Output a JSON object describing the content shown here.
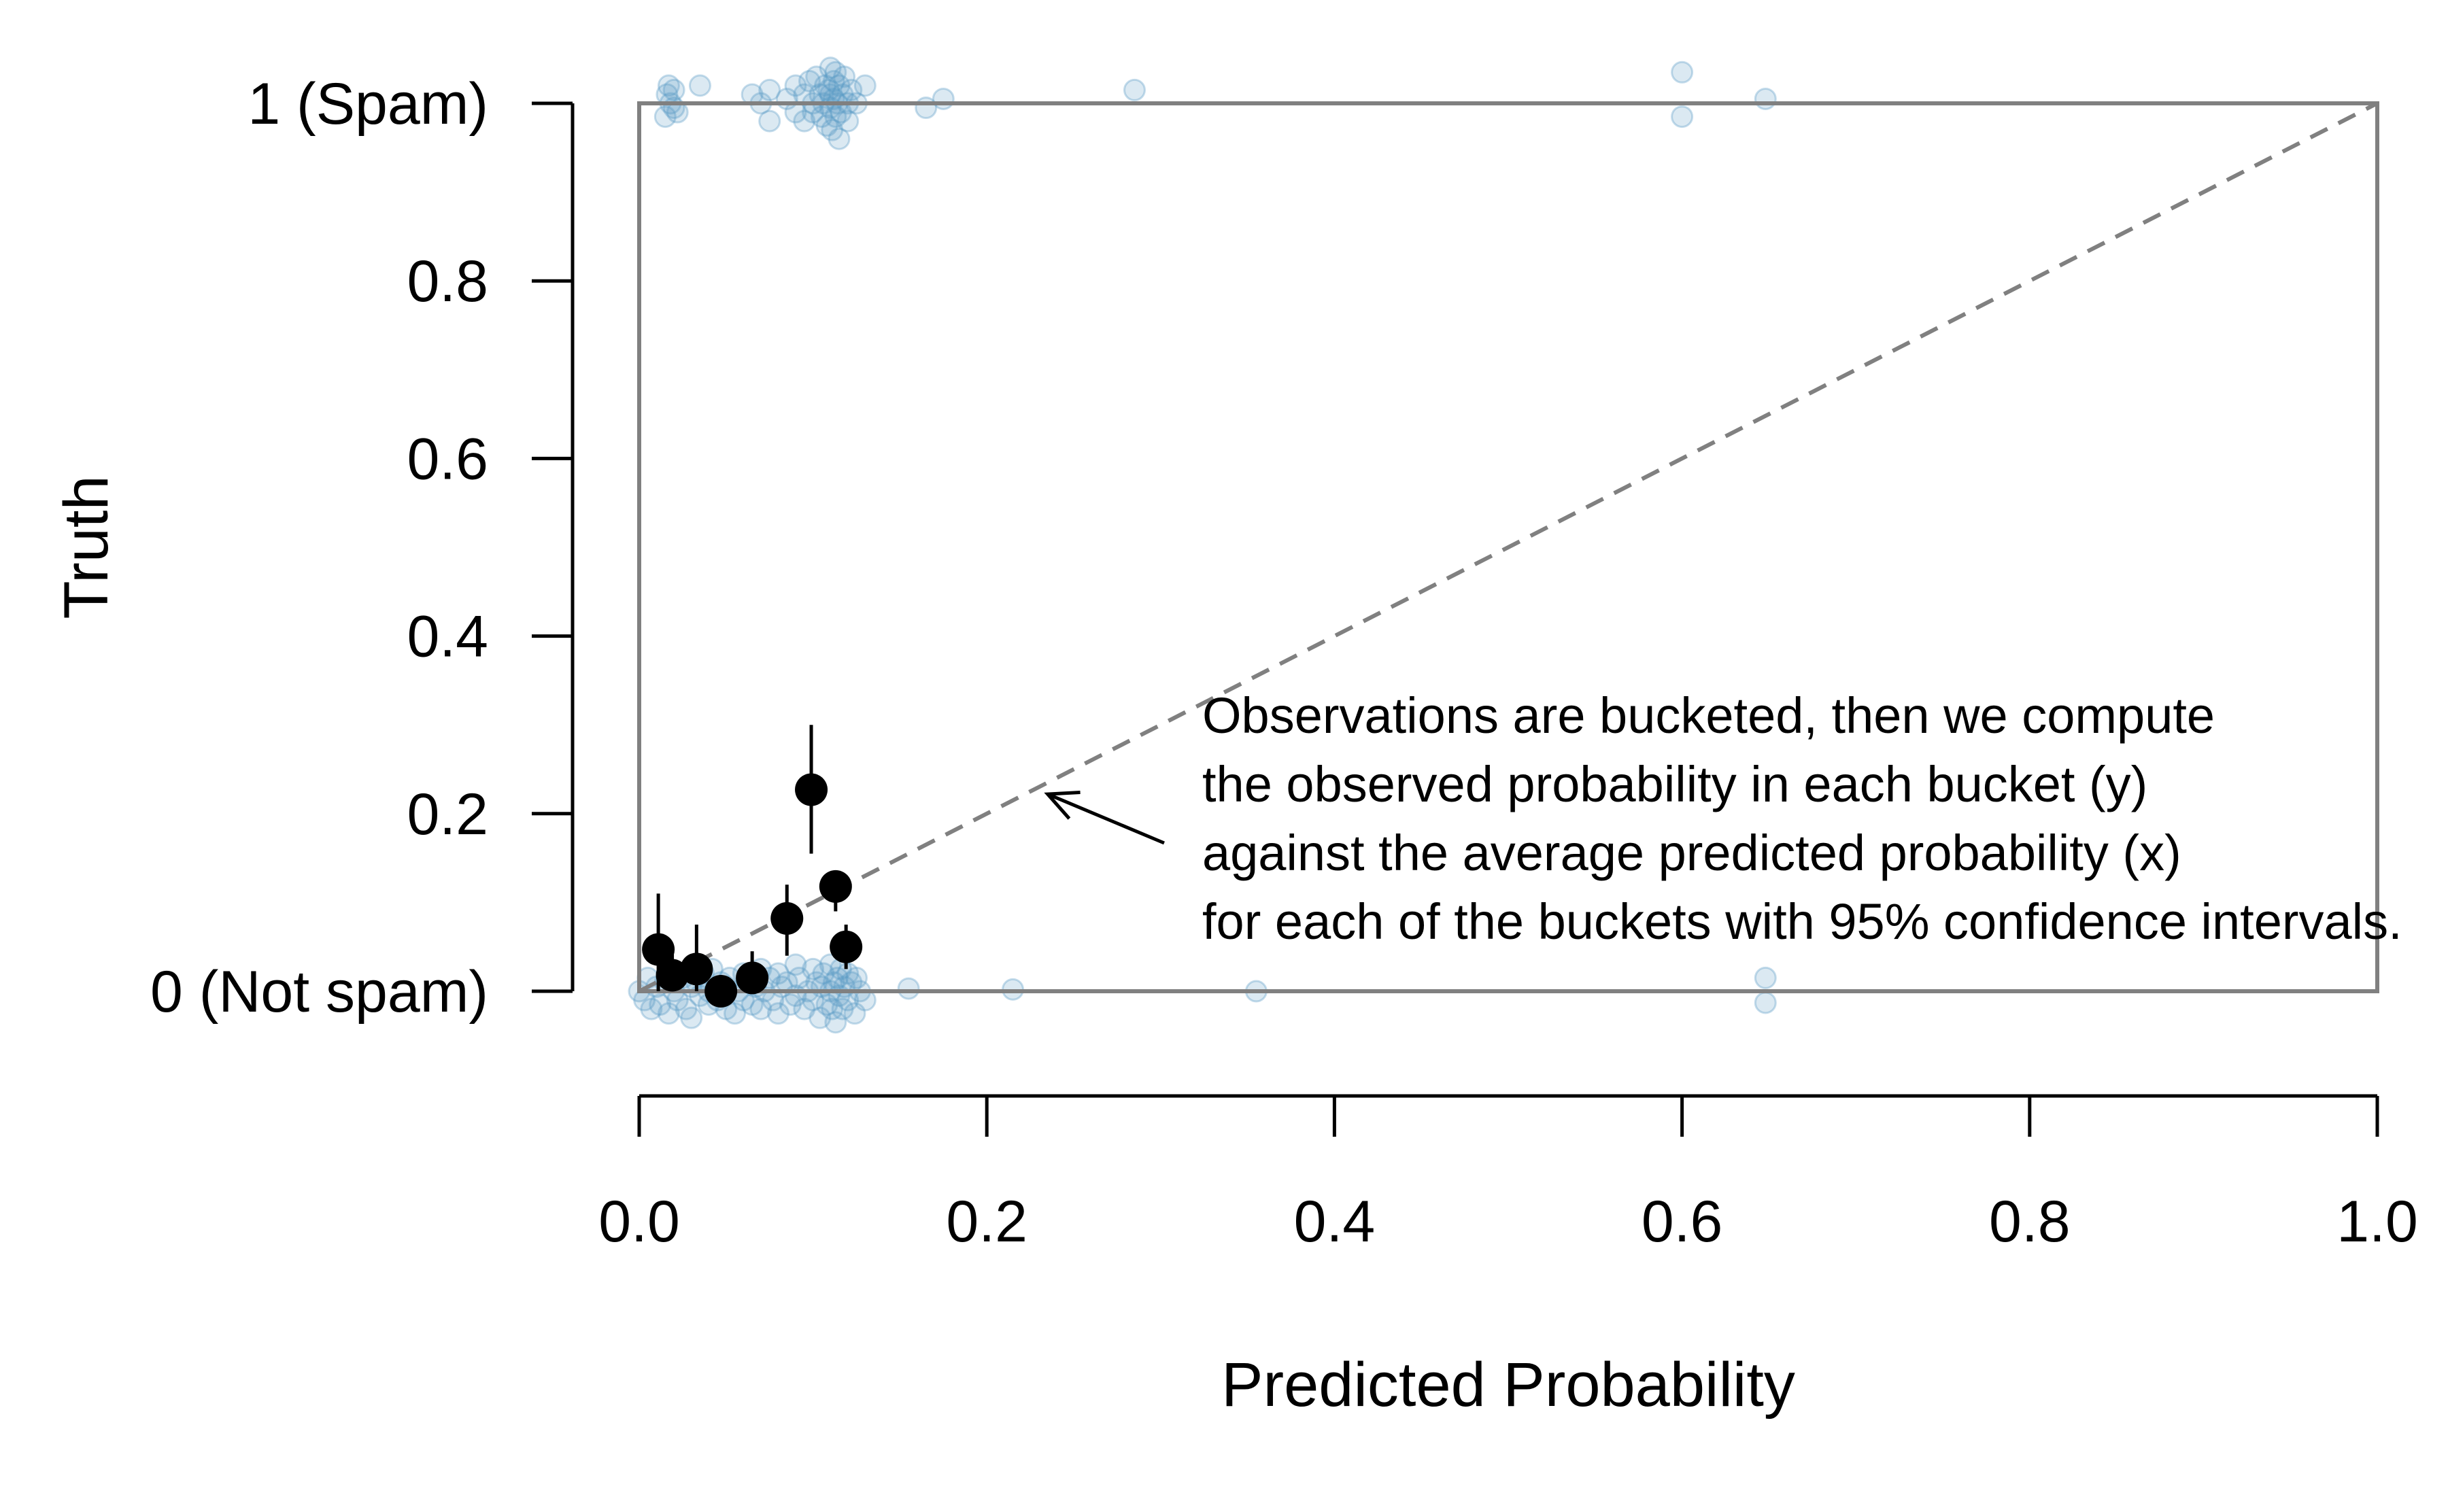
{
  "chart_data": {
    "type": "scatter",
    "xlabel": "Predicted Probability",
    "ylabel": "Truth",
    "xlim": [
      0,
      1
    ],
    "ylim": [
      0,
      1
    ],
    "x_ticks": [
      0.0,
      0.2,
      0.4,
      0.6,
      0.8,
      1.0
    ],
    "x_tick_labels": [
      "0.0",
      "0.2",
      "0.4",
      "0.6",
      "0.8",
      "1.0"
    ],
    "y_ticks": [
      0,
      0.2,
      0.4,
      0.6,
      0.8,
      1
    ],
    "y_tick_labels": [
      "0 (Not spam)",
      "0.2",
      "0.4",
      "0.6",
      "0.8",
      "1 (Spam)"
    ],
    "reference_line": {
      "from": [
        0,
        0
      ],
      "to": [
        1,
        1
      ],
      "style": "dashed",
      "color": "#808080"
    },
    "colors": {
      "observations": "#5a9ac5",
      "buckets": "#000000",
      "box": "#808080",
      "axis": "#000000"
    },
    "observations": {
      "spam_x": [
        0.015,
        0.016,
        0.017,
        0.018,
        0.02,
        0.02,
        0.022,
        0.035,
        0.065,
        0.07,
        0.075,
        0.075,
        0.085,
        0.09,
        0.09,
        0.095,
        0.095,
        0.098,
        0.1,
        0.1,
        0.102,
        0.104,
        0.105,
        0.106,
        0.107,
        0.108,
        0.109,
        0.11,
        0.11,
        0.11,
        0.111,
        0.112,
        0.112,
        0.113,
        0.113,
        0.114,
        0.115,
        0.115,
        0.116,
        0.117,
        0.118,
        0.12,
        0.12,
        0.122,
        0.125,
        0.13,
        0.165,
        0.175,
        0.285,
        0.6,
        0.6,
        0.648
      ],
      "spam_y": [
        0.985,
        1.01,
        1.02,
        1.0,
        0.995,
        1.015,
        0.99,
        1.02,
        1.01,
        1.0,
        0.98,
        1.015,
        1.005,
        0.99,
        1.02,
        1.01,
        0.98,
        1.025,
        1.0,
        0.99,
        1.03,
        1.01,
        0.985,
        1.0,
        1.02,
        0.975,
        1.015,
        1.04,
        0.995,
        1.01,
        0.97,
        1.025,
        1.005,
        0.985,
        1.035,
        1.0,
        0.96,
        1.02,
        0.99,
        1.01,
        1.03,
        0.98,
        1.0,
        1.015,
        1.0,
        1.02,
        0.995,
        1.005,
        1.015,
        1.035,
        0.985,
        1.005
      ],
      "not_spam_x": [
        0.0,
        0.003,
        0.005,
        0.007,
        0.01,
        0.012,
        0.015,
        0.017,
        0.02,
        0.02,
        0.022,
        0.025,
        0.027,
        0.03,
        0.03,
        0.033,
        0.035,
        0.037,
        0.04,
        0.04,
        0.042,
        0.045,
        0.047,
        0.05,
        0.05,
        0.052,
        0.055,
        0.057,
        0.06,
        0.06,
        0.062,
        0.065,
        0.067,
        0.07,
        0.07,
        0.072,
        0.075,
        0.077,
        0.08,
        0.08,
        0.082,
        0.085,
        0.087,
        0.09,
        0.09,
        0.092,
        0.095,
        0.097,
        0.1,
        0.1,
        0.102,
        0.104,
        0.105,
        0.106,
        0.108,
        0.11,
        0.11,
        0.111,
        0.112,
        0.113,
        0.114,
        0.115,
        0.116,
        0.117,
        0.118,
        0.12,
        0.12,
        0.122,
        0.124,
        0.125,
        0.127,
        0.13,
        0.155,
        0.215,
        0.355,
        0.648,
        0.648
      ],
      "not_spam_y": [
        0.0,
        -0.01,
        0.015,
        -0.02,
        0.005,
        -0.015,
        0.01,
        -0.025,
        0.0,
        0.02,
        -0.01,
        0.015,
        -0.02,
        0.005,
        -0.03,
        0.01,
        -0.005,
        0.02,
        -0.015,
        0.0,
        0.025,
        -0.01,
        0.01,
        -0.02,
        0.005,
        0.015,
        -0.025,
        0.0,
        0.02,
        -0.01,
        0.01,
        -0.015,
        0.005,
        0.025,
        -0.02,
        0.0,
        0.015,
        -0.01,
        0.02,
        -0.025,
        0.005,
        0.01,
        -0.015,
        0.03,
        -0.005,
        0.015,
        -0.02,
        0.0,
        0.025,
        -0.01,
        0.01,
        -0.03,
        0.005,
        0.02,
        -0.015,
        0.0,
        0.03,
        -0.02,
        0.01,
        -0.035,
        0.015,
        -0.005,
        0.025,
        -0.02,
        0.005,
        0.02,
        -0.01,
        0.01,
        -0.025,
        0.015,
        0.0,
        -0.01,
        0.003,
        0.002,
        0.0,
        0.015,
        -0.013
      ]
    },
    "buckets": [
      {
        "x": 0.011,
        "y": 0.047,
        "lo": 0.0,
        "hi": 0.11
      },
      {
        "x": 0.019,
        "y": 0.018,
        "lo": 0.0,
        "hi": 0.045
      },
      {
        "x": 0.033,
        "y": 0.025,
        "lo": 0.0,
        "hi": 0.075
      },
      {
        "x": 0.047,
        "y": 0.0,
        "lo": 0.0,
        "hi": 0.0
      },
      {
        "x": 0.065,
        "y": 0.015,
        "lo": 0.0,
        "hi": 0.045
      },
      {
        "x": 0.085,
        "y": 0.082,
        "lo": 0.04,
        "hi": 0.12
      },
      {
        "x": 0.099,
        "y": 0.227,
        "lo": 0.155,
        "hi": 0.3
      },
      {
        "x": 0.113,
        "y": 0.118,
        "lo": 0.09,
        "hi": 0.135
      },
      {
        "x": 0.119,
        "y": 0.05,
        "lo": 0.025,
        "hi": 0.075
      }
    ],
    "annotation": {
      "lines": [
        "Observations are bucketed, then we compute",
        "the observed probability in each bucket (y)",
        "against the average predicted probability (x)",
        "for each of the buckets with 95% confidence intervals."
      ],
      "arrow_target": [
        0.235,
        0.222
      ]
    }
  }
}
